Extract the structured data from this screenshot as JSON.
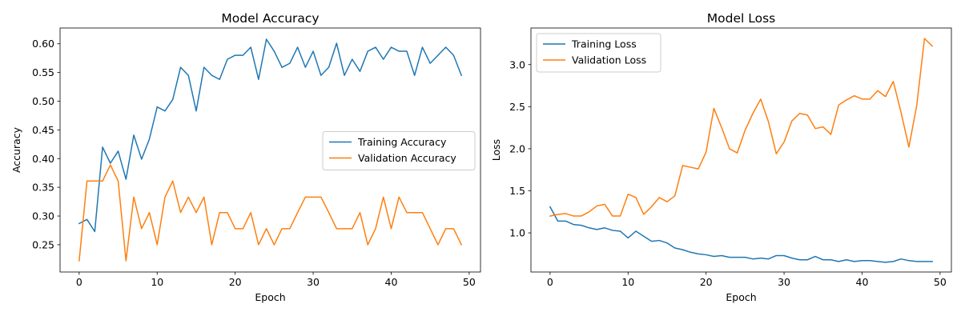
{
  "colors": {
    "blue": "#1f77b4",
    "orange": "#ff7f0e"
  },
  "chart_data": [
    {
      "type": "line",
      "title": "Model Accuracy",
      "xlabel": "Epoch",
      "ylabel": "Accuracy",
      "xlim": [
        -2.45,
        51.45
      ],
      "ylim": [
        0.2025,
        0.6275
      ],
      "xticks": [
        0,
        10,
        20,
        30,
        40,
        50
      ],
      "xtick_labels": [
        "0",
        "10",
        "20",
        "30",
        "40",
        "50"
      ],
      "yticks": [
        0.25,
        0.3,
        0.35,
        0.4,
        0.45,
        0.5,
        0.55,
        0.6
      ],
      "ytick_labels": [
        "0.25",
        "0.30",
        "0.35",
        "0.40",
        "0.45",
        "0.50",
        "0.55",
        "0.60"
      ],
      "grid": false,
      "legend": "center-right",
      "x": [
        0,
        1,
        2,
        3,
        4,
        5,
        6,
        7,
        8,
        9,
        10,
        11,
        12,
        13,
        14,
        15,
        16,
        17,
        18,
        19,
        20,
        21,
        22,
        23,
        24,
        25,
        26,
        27,
        28,
        29,
        30,
        31,
        32,
        33,
        34,
        35,
        36,
        37,
        38,
        39,
        40,
        41,
        42,
        43,
        44,
        45,
        46,
        47,
        48,
        49
      ],
      "series": [
        {
          "name": "Training Accuracy",
          "color": "#1f77b4",
          "values": [
            0.287,
            0.294,
            0.273,
            0.42,
            0.392,
            0.413,
            0.364,
            0.441,
            0.399,
            0.434,
            0.49,
            0.483,
            0.503,
            0.559,
            0.545,
            0.483,
            0.559,
            0.545,
            0.538,
            0.573,
            0.58,
            0.58,
            0.594,
            0.538,
            0.608,
            0.587,
            0.559,
            0.566,
            0.594,
            0.559,
            0.587,
            0.545,
            0.559,
            0.601,
            0.545,
            0.573,
            0.552,
            0.587,
            0.594,
            0.573,
            0.594,
            0.587,
            0.587,
            0.545,
            0.594,
            0.566,
            0.58,
            0.594,
            0.58,
            0.545
          ]
        },
        {
          "name": "Validation Accuracy",
          "color": "#ff7f0e",
          "values": [
            0.222,
            0.361,
            0.361,
            0.361,
            0.389,
            0.361,
            0.222,
            0.333,
            0.278,
            0.306,
            0.25,
            0.333,
            0.361,
            0.306,
            0.333,
            0.306,
            0.333,
            0.25,
            0.306,
            0.306,
            0.278,
            0.278,
            0.306,
            0.25,
            0.278,
            0.25,
            0.278,
            0.278,
            0.306,
            0.333,
            0.333,
            0.333,
            0.306,
            0.278,
            0.278,
            0.278,
            0.306,
            0.25,
            0.278,
            0.333,
            0.278,
            0.333,
            0.306,
            0.306,
            0.306,
            0.278,
            0.25,
            0.278,
            0.278,
            0.25
          ]
        }
      ]
    },
    {
      "type": "line",
      "title": "Model Loss",
      "xlabel": "Epoch",
      "ylabel": "Loss",
      "xlim": [
        -2.45,
        51.45
      ],
      "ylim": [
        0.535,
        3.435
      ],
      "xticks": [
        0,
        10,
        20,
        30,
        40,
        50
      ],
      "xtick_labels": [
        "0",
        "10",
        "20",
        "30",
        "40",
        "50"
      ],
      "yticks": [
        1.0,
        1.5,
        2.0,
        2.5,
        3.0
      ],
      "ytick_labels": [
        "1.0",
        "1.5",
        "2.0",
        "2.5",
        "3.0"
      ],
      "grid": false,
      "legend": "top-left",
      "x": [
        0,
        1,
        2,
        3,
        4,
        5,
        6,
        7,
        8,
        9,
        10,
        11,
        12,
        13,
        14,
        15,
        16,
        17,
        18,
        19,
        20,
        21,
        22,
        23,
        24,
        25,
        26,
        27,
        28,
        29,
        30,
        31,
        32,
        33,
        34,
        35,
        36,
        37,
        38,
        39,
        40,
        41,
        42,
        43,
        44,
        45,
        46,
        47,
        48,
        49
      ],
      "series": [
        {
          "name": "Training Loss",
          "color": "#1f77b4",
          "values": [
            1.31,
            1.14,
            1.14,
            1.1,
            1.09,
            1.06,
            1.04,
            1.06,
            1.03,
            1.02,
            0.94,
            1.02,
            0.96,
            0.9,
            0.91,
            0.88,
            0.82,
            0.8,
            0.77,
            0.75,
            0.74,
            0.72,
            0.73,
            0.71,
            0.71,
            0.71,
            0.69,
            0.7,
            0.69,
            0.73,
            0.73,
            0.7,
            0.68,
            0.68,
            0.72,
            0.68,
            0.68,
            0.66,
            0.68,
            0.66,
            0.67,
            0.67,
            0.66,
            0.65,
            0.66,
            0.69,
            0.67,
            0.66,
            0.66,
            0.66
          ]
        },
        {
          "name": "Validation Loss",
          "color": "#ff7f0e",
          "values": [
            1.2,
            1.22,
            1.23,
            1.2,
            1.2,
            1.25,
            1.32,
            1.34,
            1.2,
            1.2,
            1.46,
            1.42,
            1.22,
            1.31,
            1.42,
            1.37,
            1.44,
            1.8,
            1.78,
            1.76,
            1.96,
            2.48,
            2.25,
            2.0,
            1.95,
            2.22,
            2.42,
            2.59,
            2.32,
            1.94,
            2.08,
            2.33,
            2.42,
            2.4,
            2.24,
            2.26,
            2.17,
            2.52,
            2.58,
            2.63,
            2.59,
            2.59,
            2.69,
            2.62,
            2.8,
            2.43,
            2.02,
            2.51,
            3.31,
            3.22
          ]
        }
      ]
    }
  ]
}
